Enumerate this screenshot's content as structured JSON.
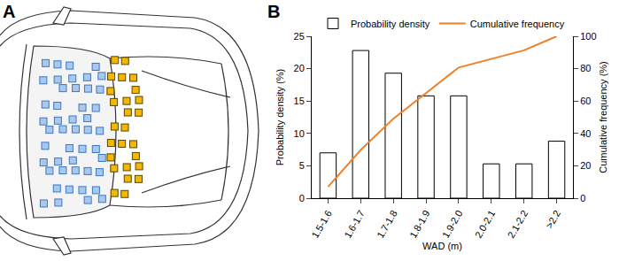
{
  "panel_a": {
    "label": "A"
  },
  "chart_data": {
    "type": "bar",
    "panel_label": "B",
    "categories": [
      "1.5-1.6",
      "1.6-1.7",
      "1.7-1.8",
      "1.8-1.9",
      "1.9-2.0",
      "2.0-2.1",
      "2.1-2.2",
      ">2.2"
    ],
    "series": [
      {
        "name": "Probability density",
        "type": "bar",
        "color": "#ffffff",
        "values": [
          7.0,
          22.8,
          19.3,
          15.8,
          15.8,
          5.3,
          5.3,
          8.8
        ]
      },
      {
        "name": "Cumulative frequency",
        "type": "line",
        "color": "#f07f2a",
        "axis": "y2",
        "values": [
          7.0,
          29.8,
          49.1,
          64.9,
          80.7,
          86.0,
          91.3,
          100
        ]
      }
    ],
    "x_label": "WAD (m)",
    "y_label": "Probability density (%)",
    "y2_label": "Cumulative frequency (%)",
    "ylim": [
      0,
      25
    ],
    "yticks": [
      0,
      5,
      10,
      15,
      20,
      25
    ],
    "y2lim": [
      0,
      100
    ],
    "y2ticks": [
      0,
      20,
      40,
      60,
      80,
      100
    ],
    "legend": "top",
    "grid": false
  }
}
